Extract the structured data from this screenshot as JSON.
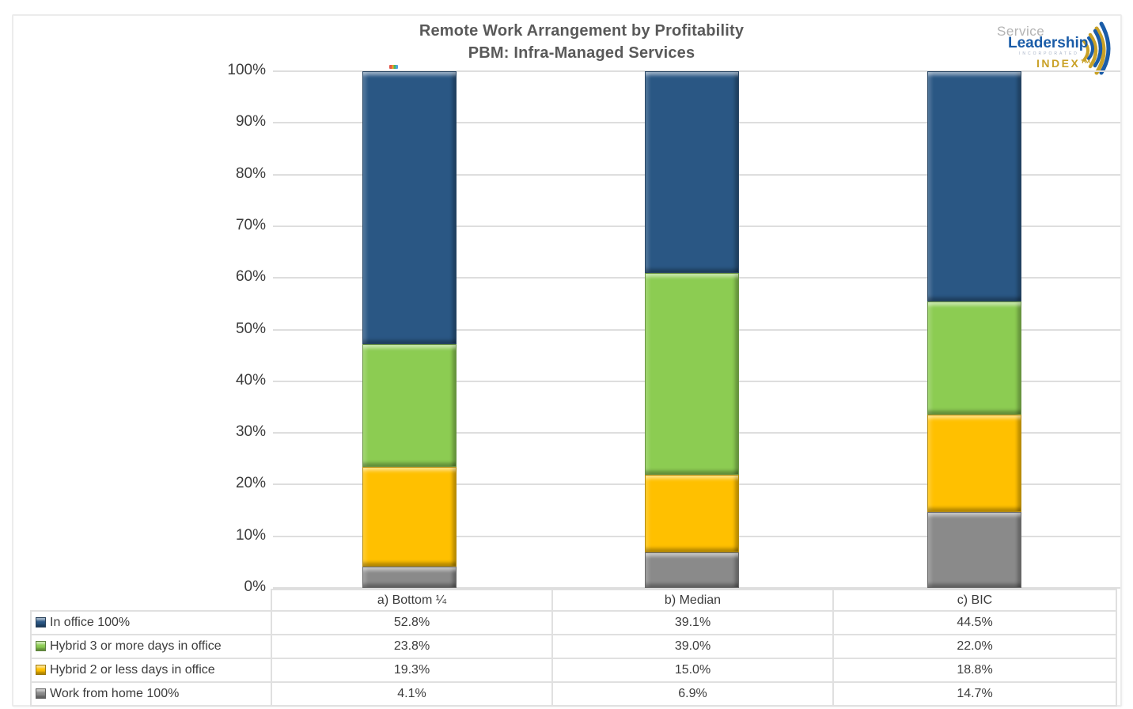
{
  "chart": {
    "title_line1": "Remote Work Arrangement by Profitability",
    "title_line2": "PBM: Infra-Managed Services"
  },
  "logo": {
    "line1": "Service",
    "line2": "Leadership",
    "line3": "INCORPORATED",
    "line4": "INDEX™",
    "blue": "#1a5ca8",
    "gold": "#c9a127",
    "gray": "#b3b3b3"
  },
  "chart_data": {
    "type": "bar",
    "stacked": true,
    "title": "Remote Work Arrangement by Profitability — PBM: Infra-Managed Services",
    "categories": [
      "a) Bottom ¼",
      "b) Median",
      "c) BIC"
    ],
    "series": [
      {
        "name": "In office 100%",
        "values": [
          52.8,
          39.1,
          44.5
        ],
        "color": "#2a5784"
      },
      {
        "name": "Hybrid 3 or more days in office",
        "values": [
          23.8,
          39.0,
          22.0
        ],
        "color": "#8ccc52"
      },
      {
        "name": "Hybrid 2 or less days in office",
        "values": [
          19.3,
          15.0,
          18.8
        ],
        "color": "#ffc000"
      },
      {
        "name": "Work from home 100%",
        "values": [
          4.1,
          6.9,
          14.7
        ],
        "color": "#8a8a8a"
      }
    ],
    "stack_order_bottom_to_top": [
      "Work from home 100%",
      "Hybrid 2 or less days in office",
      "Hybrid 3 or more days in office",
      "In office 100%"
    ],
    "y_ticks": [
      "100%",
      "90%",
      "80%",
      "70%",
      "60%",
      "50%",
      "40%",
      "30%",
      "20%",
      "10%",
      "0%"
    ],
    "ylim": [
      0,
      100
    ],
    "grid": true,
    "gridline_color": "#dedede",
    "legend_position": "data-table-left",
    "value_format": "percent_one_decimal"
  }
}
